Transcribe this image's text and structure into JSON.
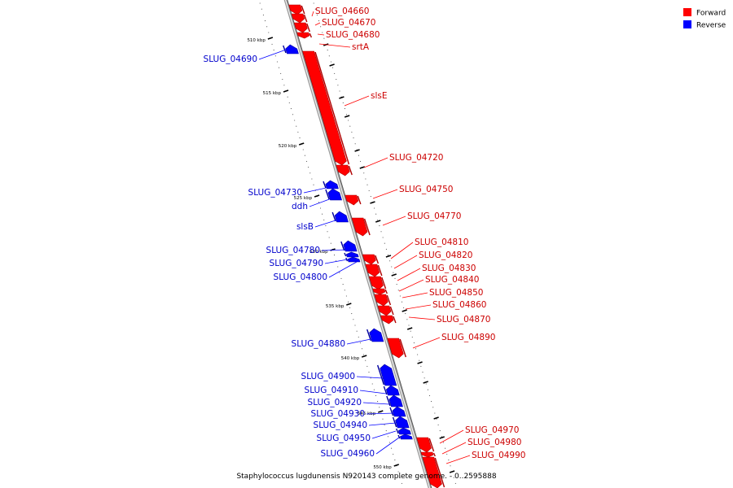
{
  "legend": [
    {
      "label": "Forward",
      "color": "#ff0000"
    },
    {
      "label": "Reverse",
      "color": "#0000ff"
    }
  ],
  "caption": "Staphylococcus lugdunensis N920143 complete genome. - 0..2595888",
  "ticks": [
    {
      "label": "510 kbp",
      "bp": 510000
    },
    {
      "label": "515 kbp",
      "bp": 515000
    },
    {
      "label": "520 kbp",
      "bp": 520000
    },
    {
      "label": "525 kbp",
      "bp": 525000
    },
    {
      "label": "530 kbp",
      "bp": 530000
    },
    {
      "label": "535 kbp",
      "bp": 535000
    },
    {
      "label": "540 kbp",
      "bp": 540000
    },
    {
      "label": "545 kbp",
      "bp": 545000
    },
    {
      "label": "550 kbp",
      "bp": 550000
    }
  ],
  "features": [
    {
      "name": "SLUG_04660",
      "strand": "forward"
    },
    {
      "name": "SLUG_04670",
      "strand": "forward"
    },
    {
      "name": "SLUG_04680",
      "strand": "forward"
    },
    {
      "name": "srtA",
      "strand": "forward"
    },
    {
      "name": "SLUG_04690",
      "strand": "reverse"
    },
    {
      "name": "slsE",
      "strand": "forward"
    },
    {
      "name": "SLUG_04720",
      "strand": "forward"
    },
    {
      "name": "SLUG_04730",
      "strand": "reverse"
    },
    {
      "name": "ddh",
      "strand": "reverse"
    },
    {
      "name": "SLUG_04750",
      "strand": "forward"
    },
    {
      "name": "SLUG_04770",
      "strand": "forward"
    },
    {
      "name": "slsB",
      "strand": "reverse"
    },
    {
      "name": "SLUG_04780",
      "strand": "reverse"
    },
    {
      "name": "SLUG_04790",
      "strand": "reverse"
    },
    {
      "name": "SLUG_04800",
      "strand": "reverse"
    },
    {
      "name": "SLUG_04810",
      "strand": "forward"
    },
    {
      "name": "SLUG_04820",
      "strand": "forward"
    },
    {
      "name": "SLUG_04830",
      "strand": "forward"
    },
    {
      "name": "SLUG_04840",
      "strand": "forward"
    },
    {
      "name": "SLUG_04850",
      "strand": "forward"
    },
    {
      "name": "SLUG_04860",
      "strand": "forward"
    },
    {
      "name": "SLUG_04870",
      "strand": "forward"
    },
    {
      "name": "SLUG_04880",
      "strand": "reverse"
    },
    {
      "name": "SLUG_04890",
      "strand": "forward"
    },
    {
      "name": "SLUG_04900",
      "strand": "reverse"
    },
    {
      "name": "SLUG_04910",
      "strand": "reverse"
    },
    {
      "name": "SLUG_04920",
      "strand": "reverse"
    },
    {
      "name": "SLUG_04930",
      "strand": "reverse"
    },
    {
      "name": "SLUG_04940",
      "strand": "reverse"
    },
    {
      "name": "SLUG_04950",
      "strand": "reverse"
    },
    {
      "name": "SLUG_04960",
      "strand": "reverse"
    },
    {
      "name": "SLUG_04970",
      "strand": "forward"
    },
    {
      "name": "SLUG_04980",
      "strand": "forward"
    },
    {
      "name": "SLUG_04990",
      "strand": "forward"
    }
  ]
}
